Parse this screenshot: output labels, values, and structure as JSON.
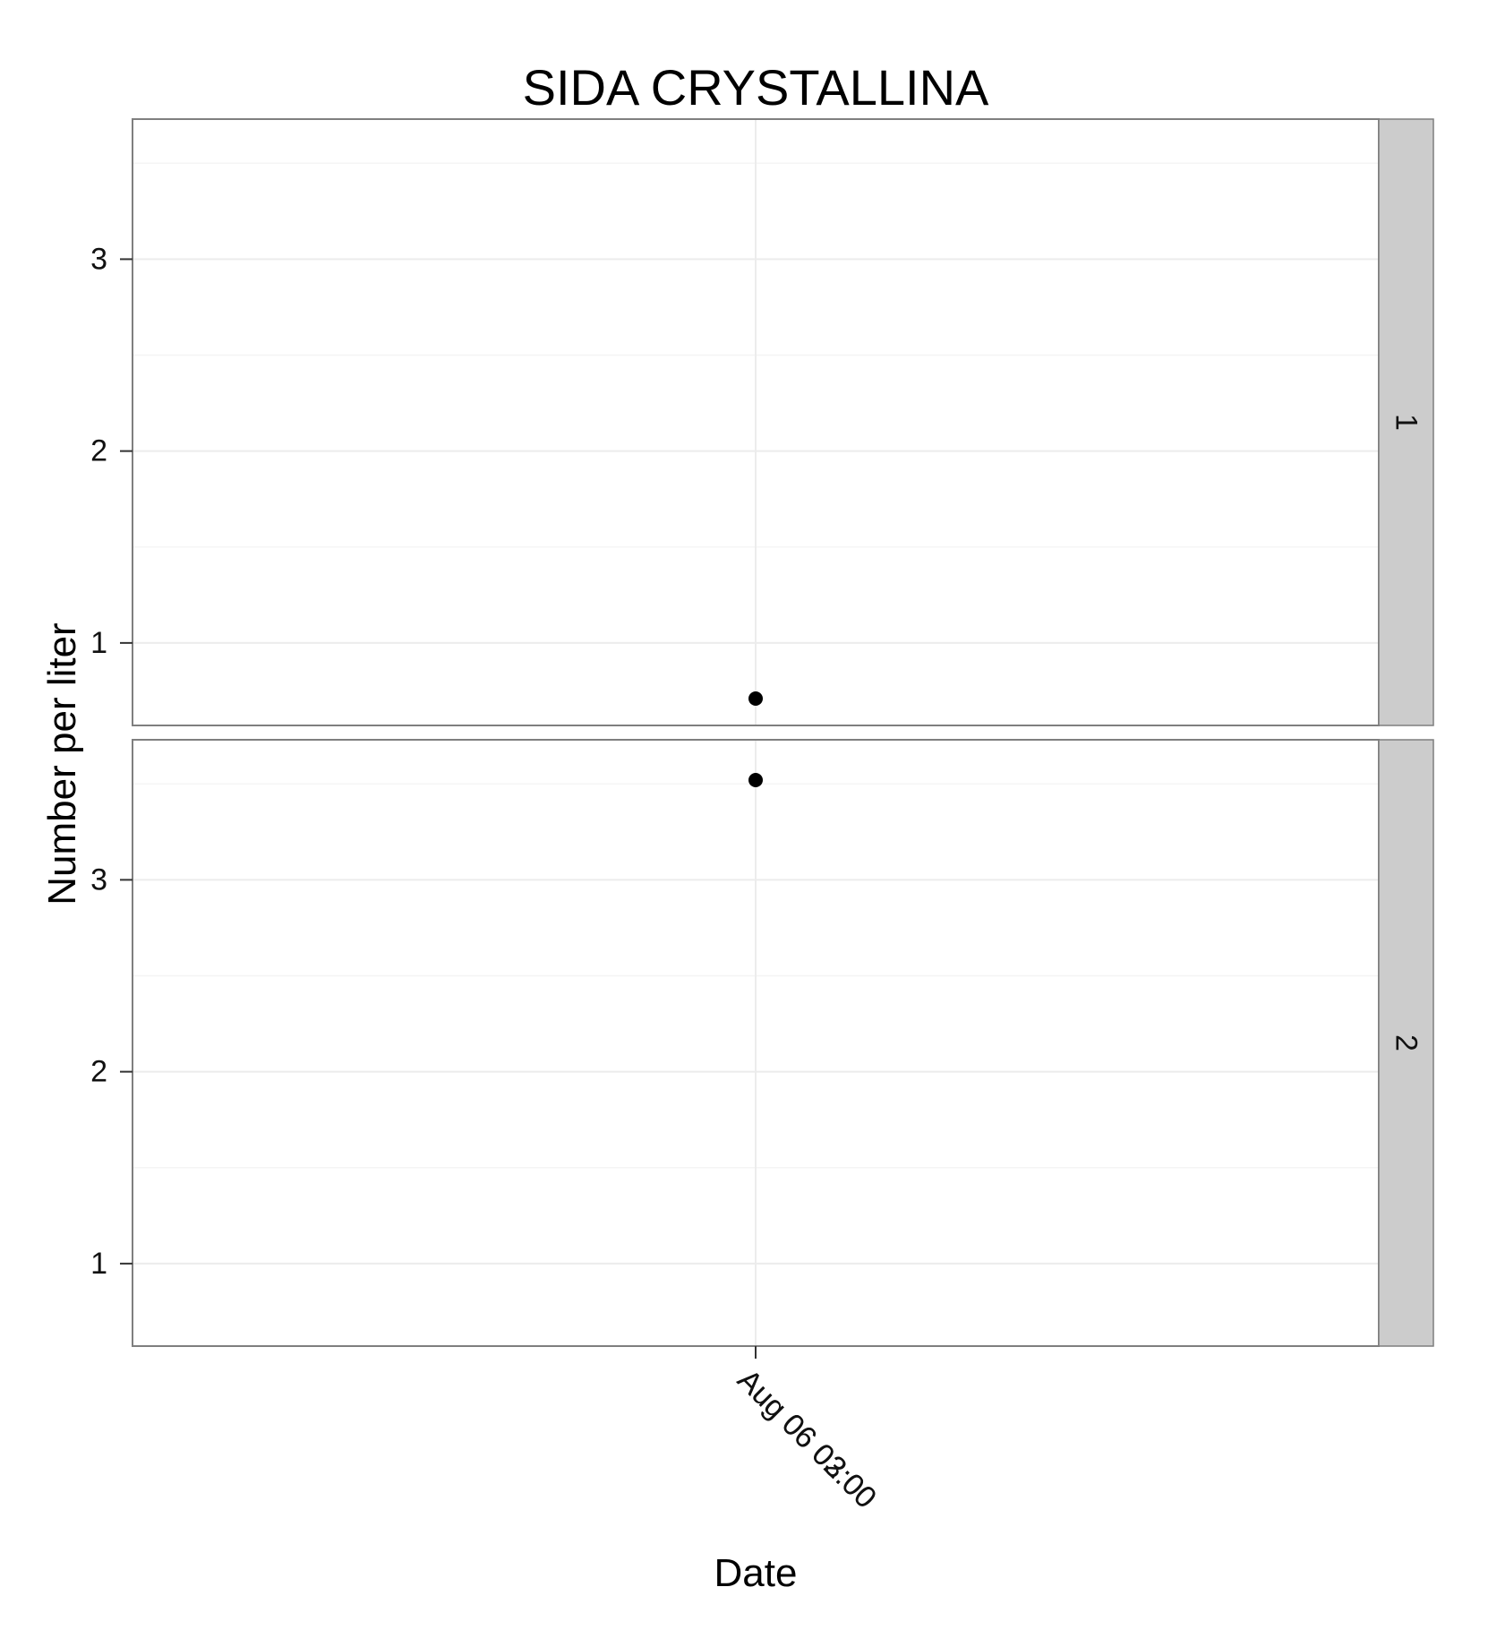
{
  "chart_data": {
    "type": "scatter",
    "title": "SIDA CRYSTALLINA",
    "xlabel": "Date",
    "ylabel": "Number per liter",
    "x_ticks": [
      {
        "x": "Aug 06 02:00",
        "label": "Aug 06 02:00"
      },
      {
        "x": "Aug 06 03:00",
        "label": "Aug 06 03:00"
      }
    ],
    "y_ticks": [
      1,
      2,
      3
    ],
    "ylim": [
      0.57,
      3.73
    ],
    "grid": true,
    "facets": [
      {
        "strip_label": "1",
        "points": [
          {
            "x": "Aug 06 02:00",
            "y": 0.71
          }
        ]
      },
      {
        "strip_label": "2",
        "points": [
          {
            "x": "Aug 06 03:00",
            "y": 3.52
          }
        ]
      }
    ]
  }
}
